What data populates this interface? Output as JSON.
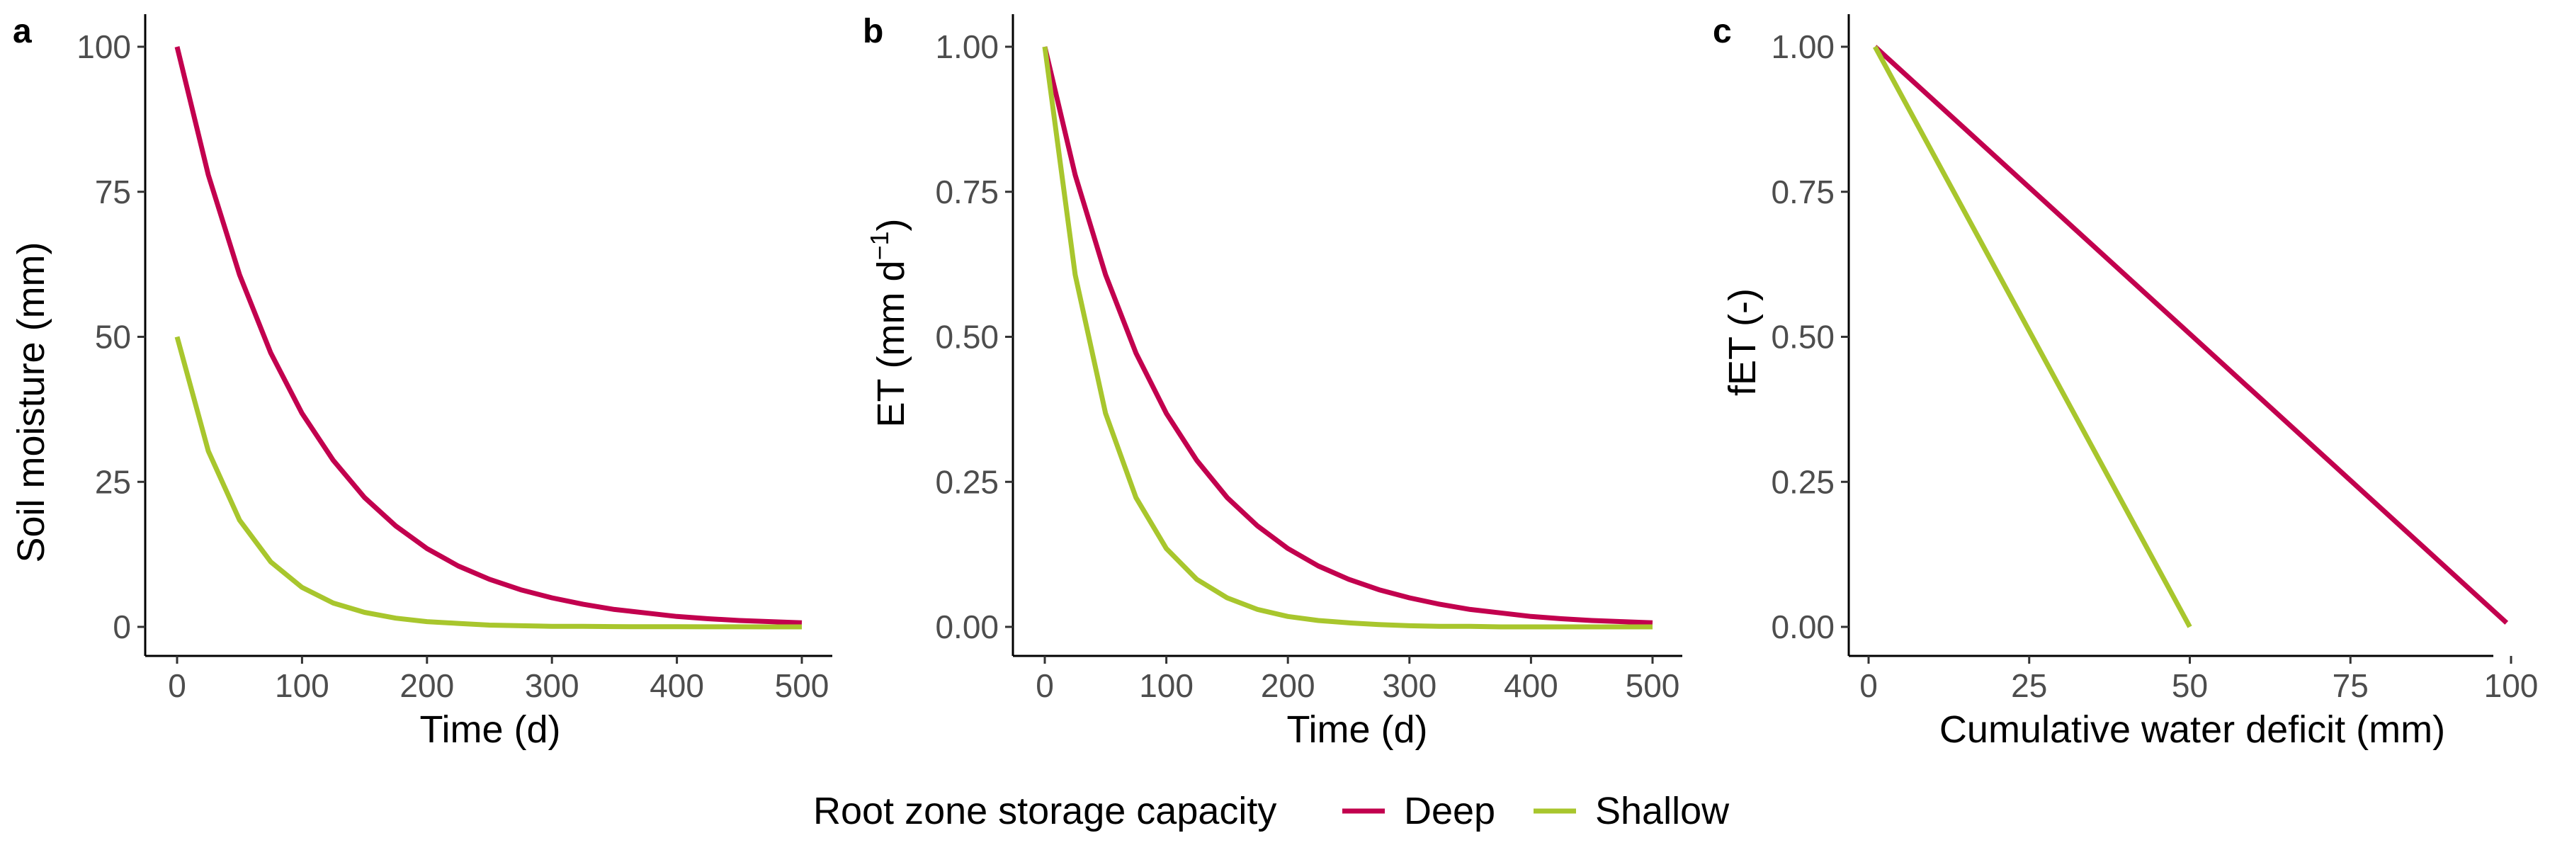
{
  "colors": {
    "deep": "#C2004E",
    "shallow": "#A8C62D"
  },
  "legend": {
    "title": "Root zone storage capacity",
    "items": [
      {
        "label": "Deep",
        "color": "#C2004E"
      },
      {
        "label": "Shallow",
        "color": "#A8C62D"
      }
    ]
  },
  "chart_data": [
    {
      "type": "line",
      "panel": "a",
      "xlabel": "Time (d)",
      "ylabel": "Soil moisture (mm)",
      "xlim": [
        0,
        500
      ],
      "ylim": [
        0,
        100
      ],
      "xticks": [
        0,
        100,
        200,
        300,
        400,
        500
      ],
      "yticks": [
        0,
        25,
        50,
        75,
        100
      ],
      "xtick_labels": [
        "0",
        "100",
        "200",
        "300",
        "400",
        "500"
      ],
      "ytick_labels": [
        "0",
        "25",
        "50",
        "75",
        "100"
      ],
      "grid": false,
      "series": [
        {
          "name": "Deep",
          "color": "#C2004E",
          "x": [
            0,
            25,
            50,
            75,
            100,
            125,
            150,
            175,
            200,
            225,
            250,
            275,
            300,
            325,
            350,
            375,
            400,
            425,
            450,
            475,
            500
          ],
          "y": [
            100,
            77.9,
            60.7,
            47.2,
            36.8,
            28.7,
            22.3,
            17.4,
            13.5,
            10.5,
            8.2,
            6.4,
            5.0,
            3.9,
            3.0,
            2.4,
            1.8,
            1.4,
            1.1,
            0.9,
            0.7
          ]
        },
        {
          "name": "Shallow",
          "color": "#A8C62D",
          "x": [
            0,
            25,
            50,
            75,
            100,
            125,
            150,
            175,
            200,
            225,
            250,
            275,
            300,
            325,
            350,
            375,
            400,
            425,
            450,
            475,
            500
          ],
          "y": [
            50,
            30.3,
            18.4,
            11.2,
            6.8,
            4.1,
            2.5,
            1.5,
            0.9,
            0.6,
            0.3,
            0.2,
            0.1,
            0.1,
            0.05,
            0.03,
            0.02,
            0.01,
            0.01,
            0.0,
            0.0
          ]
        }
      ]
    },
    {
      "type": "line",
      "panel": "b",
      "xlabel": "Time (d)",
      "ylabel": "ET (mm d",
      "ylabel_sup": "−1",
      "ylabel_close": ")",
      "xlim": [
        0,
        500
      ],
      "ylim": [
        0,
        1
      ],
      "xticks": [
        0,
        100,
        200,
        300,
        400,
        500
      ],
      "yticks": [
        0,
        0.25,
        0.5,
        0.75,
        1.0
      ],
      "xtick_labels": [
        "0",
        "100",
        "200",
        "300",
        "400",
        "500"
      ],
      "ytick_labels": [
        "0.00",
        "0.25",
        "0.50",
        "0.75",
        "1.00"
      ],
      "grid": false,
      "series": [
        {
          "name": "Deep",
          "color": "#C2004E",
          "x": [
            0,
            25,
            50,
            75,
            100,
            125,
            150,
            175,
            200,
            225,
            250,
            275,
            300,
            325,
            350,
            375,
            400,
            425,
            450,
            475,
            500
          ],
          "y": [
            1.0,
            0.779,
            0.607,
            0.472,
            0.368,
            0.287,
            0.223,
            0.174,
            0.135,
            0.105,
            0.082,
            0.064,
            0.05,
            0.039,
            0.03,
            0.024,
            0.018,
            0.014,
            0.011,
            0.009,
            0.007
          ]
        },
        {
          "name": "Shallow",
          "color": "#A8C62D",
          "x": [
            0,
            25,
            50,
            75,
            100,
            125,
            150,
            175,
            200,
            225,
            250,
            275,
            300,
            325,
            350,
            375,
            400,
            425,
            450,
            475,
            500
          ],
          "y": [
            1.0,
            0.607,
            0.368,
            0.223,
            0.135,
            0.082,
            0.05,
            0.03,
            0.018,
            0.011,
            0.007,
            0.004,
            0.002,
            0.001,
            0.001,
            0.0,
            0.0,
            0.0,
            0.0,
            0.0,
            0.0
          ]
        }
      ]
    },
    {
      "type": "line",
      "panel": "c",
      "xlabel": "Cumulative water deficit (mm)",
      "ylabel": "fET (-)",
      "xlim": [
        0,
        100
      ],
      "ylim": [
        0,
        1
      ],
      "xticks": [
        0,
        25,
        50,
        75,
        100
      ],
      "yticks": [
        0,
        0.25,
        0.5,
        0.75,
        1.0
      ],
      "xtick_labels": [
        "0",
        "25",
        "50",
        "75",
        "100"
      ],
      "ytick_labels": [
        "0.00",
        "0.25",
        "0.50",
        "0.75",
        "1.00"
      ],
      "grid": false,
      "series": [
        {
          "name": "Deep",
          "color": "#C2004E",
          "x": [
            1,
            99.3
          ],
          "y": [
            1.0,
            0.007
          ]
        },
        {
          "name": "Shallow",
          "color": "#A8C62D",
          "x": [
            1,
            50
          ],
          "y": [
            1.0,
            0.0
          ]
        }
      ]
    }
  ]
}
